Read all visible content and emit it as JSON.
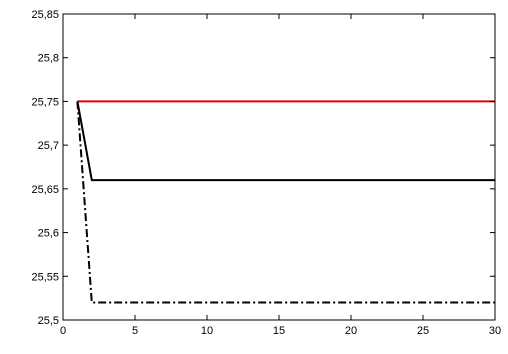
{
  "chart_data": {
    "type": "line",
    "title": "",
    "xlabel": "",
    "ylabel": "",
    "xlim": [
      0,
      30
    ],
    "ylim": [
      25.5,
      25.85
    ],
    "grid": false,
    "legend": "none",
    "x_ticks": [
      {
        "value": 0,
        "label": "0"
      },
      {
        "value": 5,
        "label": "5"
      },
      {
        "value": 10,
        "label": "10"
      },
      {
        "value": 15,
        "label": "15"
      },
      {
        "value": 20,
        "label": "20"
      },
      {
        "value": 25,
        "label": "25"
      },
      {
        "value": 30,
        "label": "30"
      }
    ],
    "y_ticks": [
      {
        "value": 25.5,
        "label": "25,5"
      },
      {
        "value": 25.55,
        "label": "25,55"
      },
      {
        "value": 25.6,
        "label": "25,6"
      },
      {
        "value": 25.65,
        "label": "25,65"
      },
      {
        "value": 25.7,
        "label": "25,7"
      },
      {
        "value": 25.75,
        "label": "25,75"
      },
      {
        "value": 25.8,
        "label": "25,8"
      },
      {
        "value": 25.85,
        "label": "25,85"
      }
    ],
    "series": [
      {
        "color": "#e00000",
        "style": "solid",
        "x": [
          1,
          30
        ],
        "y": [
          25.75,
          25.75
        ]
      },
      {
        "color": "#000000",
        "style": "solid",
        "x": [
          1,
          2,
          30
        ],
        "y": [
          25.75,
          25.66,
          25.66
        ]
      },
      {
        "color": "#000000",
        "style": "dashdot",
        "x": [
          1,
          2,
          30
        ],
        "y": [
          25.75,
          25.52,
          25.52
        ]
      }
    ]
  }
}
